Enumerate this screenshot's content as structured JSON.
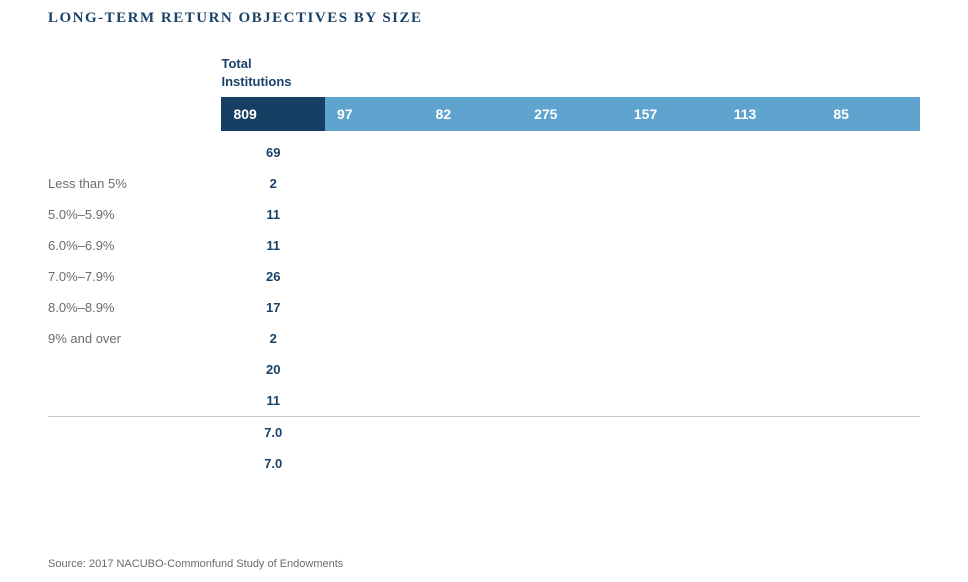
{
  "title": "LONG-TERM RETURN OBJECTIVES BY SIZE",
  "header": {
    "total_label_line1": "Total",
    "total_label_line2": "Institutions"
  },
  "counts": [
    "809",
    "97",
    "82",
    "275",
    "157",
    "113",
    "85"
  ],
  "rows": [
    {
      "label": "",
      "vals": [
        "69",
        "",
        "",
        "",
        "",
        "",
        ""
      ]
    },
    {
      "label": "Less than 5%",
      "vals": [
        "2",
        "",
        "",
        "",
        "",
        "",
        ""
      ]
    },
    {
      "label": "5.0%–5.9%",
      "vals": [
        "11",
        "",
        "",
        "",
        "",
        "",
        ""
      ]
    },
    {
      "label": "6.0%–6.9%",
      "vals": [
        "11",
        "",
        "",
        "",
        "",
        "",
        ""
      ]
    },
    {
      "label": "7.0%–7.9%",
      "vals": [
        "26",
        "",
        "",
        "",
        "",
        "",
        ""
      ]
    },
    {
      "label": "8.0%–8.9%",
      "vals": [
        "17",
        "",
        "",
        "",
        "",
        "",
        ""
      ]
    },
    {
      "label": "9% and over",
      "vals": [
        "2",
        "",
        "",
        "",
        "",
        "",
        ""
      ]
    },
    {
      "label": "",
      "vals": [
        "20",
        "",
        "",
        "",
        "",
        "",
        ""
      ]
    },
    {
      "label": "",
      "vals": [
        "11",
        "",
        "",
        "",
        "",
        "",
        ""
      ]
    }
  ],
  "summary": [
    {
      "label": "",
      "vals": [
        "7.0",
        "",
        "",
        "",
        "",
        "",
        ""
      ]
    },
    {
      "label": "",
      "vals": [
        "7.0",
        "",
        "",
        "",
        "",
        "",
        ""
      ]
    }
  ],
  "footnote": "Source: 2017 NACUBO-Commonfund Study of Endowments",
  "colors": {
    "title": "#1a4268",
    "value": "#1a4268",
    "label": "#6b6b6b",
    "count_dark_bg": "#173f64",
    "count_light_bg": "#5fa3cf",
    "hr": "#c8c8c8"
  }
}
